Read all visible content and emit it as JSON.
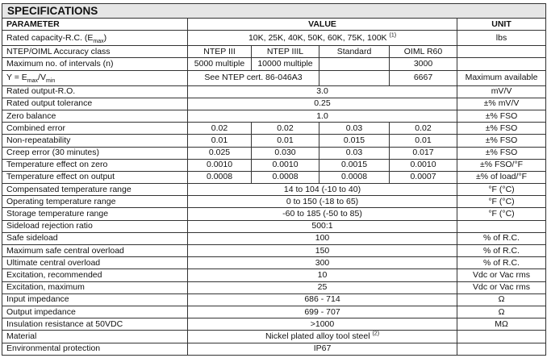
{
  "title": "SPECIFICATIONS",
  "headers": {
    "parameter": "PARAMETER",
    "value": "VALUE",
    "unit": "UNIT"
  },
  "rows": [
    {
      "param": [
        {
          "t": "Rated capacity-R.C. (E"
        },
        {
          "t": "max",
          "s": "sub"
        },
        {
          "t": ")"
        }
      ],
      "values": [
        [
          {
            "t": "10K, 25K, 40K, 50K, 60K, 75K, 100K "
          },
          {
            "t": "(1)",
            "s": "sup"
          }
        ]
      ],
      "unit": "lbs"
    },
    {
      "param": "NTEP/OIML Accuracy class",
      "values": [
        "NTEP III",
        "NTEP IIIL",
        "Standard",
        "OIML R60"
      ],
      "unit": ""
    },
    {
      "param": "Maximum no. of intervals (n)",
      "values": [
        "5000 multiple",
        "10000 multiple",
        "",
        "3000"
      ],
      "unit": ""
    },
    {
      "param": [
        {
          "t": "Y = E"
        },
        {
          "t": "max",
          "s": "sub"
        },
        {
          "t": "/V"
        },
        {
          "t": "min",
          "s": "sub"
        }
      ],
      "values": [
        "See NTEP cert. 86-046A3",
        "",
        "6667"
      ],
      "unit": "Maximum available"
    },
    {
      "param": "Rated output-R.O.",
      "values": [
        "3.0"
      ],
      "unit": "mV/V"
    },
    {
      "param": "Rated output tolerance",
      "values": [
        "0.25"
      ],
      "unit": "±% mV/V"
    },
    {
      "param": "Zero balance",
      "values": [
        "1.0"
      ],
      "unit": "±% FSO"
    },
    {
      "param": "Combined error",
      "values": [
        "0.02",
        "0.02",
        "0.03",
        "0.02"
      ],
      "unit": "±% FSO"
    },
    {
      "param": "Non-repeatability",
      "values": [
        "0.01",
        "0.01",
        "0.015",
        "0.01"
      ],
      "unit": "±% FSO"
    },
    {
      "param": "Creep error (30 minutes)",
      "values": [
        "0.025",
        "0.030",
        "0.03",
        "0.017"
      ],
      "unit": "±% FSO"
    },
    {
      "param": "Temperature effect on zero",
      "values": [
        "0.0010",
        "0.0010",
        "0.0015",
        "0.0010"
      ],
      "unit": "±% FSO/°F"
    },
    {
      "param": "Temperature effect on output",
      "values": [
        "0.0008",
        "0.0008",
        "0.0008",
        "0.0007"
      ],
      "unit": "±% of load/°F"
    },
    {
      "param": "Compensated temperature range",
      "values": [
        "14 to 104 (-10 to 40)"
      ],
      "unit": "°F (°C)"
    },
    {
      "param": "Operating temperature range",
      "values": [
        "0 to 150 (-18 to 65)"
      ],
      "unit": "°F (°C)"
    },
    {
      "param": "Storage temperature range",
      "values": [
        "-60 to 185 (-50 to 85)"
      ],
      "unit": "°F (°C)"
    },
    {
      "param": "Sideload rejection ratio",
      "values": [
        "500:1"
      ],
      "unit": ""
    },
    {
      "param": "Safe sideload",
      "values": [
        "100"
      ],
      "unit": "% of R.C."
    },
    {
      "param": "Maximum safe central overload",
      "values": [
        "150"
      ],
      "unit": "% of R.C."
    },
    {
      "param": "Ultimate central overload",
      "values": [
        "300"
      ],
      "unit": "% of R.C."
    },
    {
      "param": "Excitation, recommended",
      "values": [
        "10"
      ],
      "unit": "Vdc or Vac rms"
    },
    {
      "param": "Excitation, maximum",
      "values": [
        "25"
      ],
      "unit": "Vdc or Vac rms"
    },
    {
      "param": "Input impedance",
      "values": [
        "686 - 714"
      ],
      "unit": "Ω"
    },
    {
      "param": "Output impedance",
      "values": [
        "699 - 707"
      ],
      "unit": "Ω"
    },
    {
      "param": "Insulation resistance at 50VDC",
      "values": [
        ">1000"
      ],
      "unit": "MΩ"
    },
    {
      "param": "Material",
      "values": [
        [
          {
            "t": "Nickel plated alloy tool steel "
          },
          {
            "t": "(2)",
            "s": "sup"
          }
        ]
      ],
      "unit": ""
    },
    {
      "param": "Environmental protection",
      "values": [
        "IP67"
      ],
      "unit": ""
    }
  ]
}
